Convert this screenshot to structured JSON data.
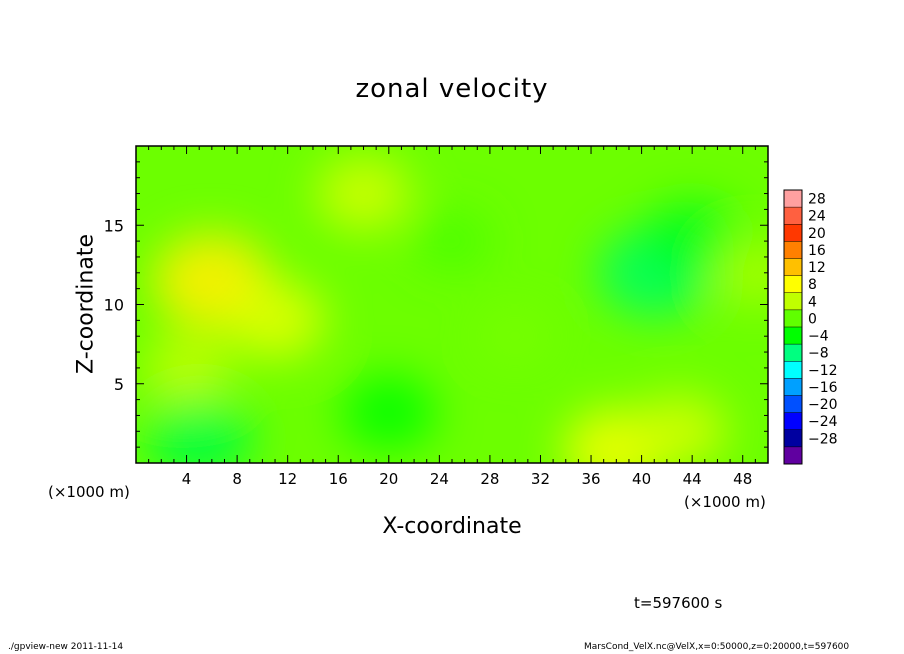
{
  "app": {
    "footer_left": "./gpview-new  2011-11-14",
    "footer_right": "MarsCond_VelX.nc@VelX,x=0:50000,z=0:20000,t=597600"
  },
  "time_label": "t=597600 s",
  "chart_data": {
    "type": "heatmap",
    "title": "zonal velocity",
    "xlabel": "X-coordinate",
    "ylabel": "Z-coordinate",
    "x_unit": "(×1000 m)",
    "xlim": [
      0,
      50
    ],
    "ylim": [
      0,
      20
    ],
    "x_ticks": [
      4,
      8,
      12,
      16,
      20,
      24,
      28,
      32,
      36,
      40,
      44,
      48
    ],
    "y_ticks": [
      5,
      10,
      15
    ],
    "colorbar": {
      "levels": [
        28,
        24,
        20,
        16,
        12,
        8,
        4,
        0,
        -4,
        -8,
        -12,
        -16,
        -20,
        -24,
        -28
      ],
      "colors": [
        "#ffa0a0",
        "#ff6040",
        "#ff3800",
        "#ff8000",
        "#ffc000",
        "#ffff00",
        "#c0ff00",
        "#60ff00",
        "#00ff00",
        "#00ff80",
        "#00ffff",
        "#00a0ff",
        "#0050ff",
        "#0000ff",
        "#0000a0",
        "#6000a0"
      ]
    },
    "features": [
      {
        "x": 6,
        "z": 11.5,
        "value": 9
      },
      {
        "x": 11,
        "z": 9,
        "value": 6
      },
      {
        "x": 18,
        "z": 17,
        "value": 5
      },
      {
        "x": 4,
        "z": 6,
        "value": 4
      },
      {
        "x": 41,
        "z": 12,
        "value": -7
      },
      {
        "x": 44,
        "z": 14,
        "value": -5
      },
      {
        "x": 5,
        "z": 1.5,
        "value": -6
      },
      {
        "x": 20,
        "z": 3.2,
        "value": -4
      },
      {
        "x": 38,
        "z": 0.8,
        "value": 7
      },
      {
        "x": 43,
        "z": 2,
        "value": 5
      },
      {
        "x": 30,
        "z": 8,
        "value": 1
      },
      {
        "x": 25,
        "z": 14,
        "value": -1
      },
      {
        "x": 49,
        "z": 12,
        "value": 3
      }
    ],
    "base_value": 0.5
  }
}
